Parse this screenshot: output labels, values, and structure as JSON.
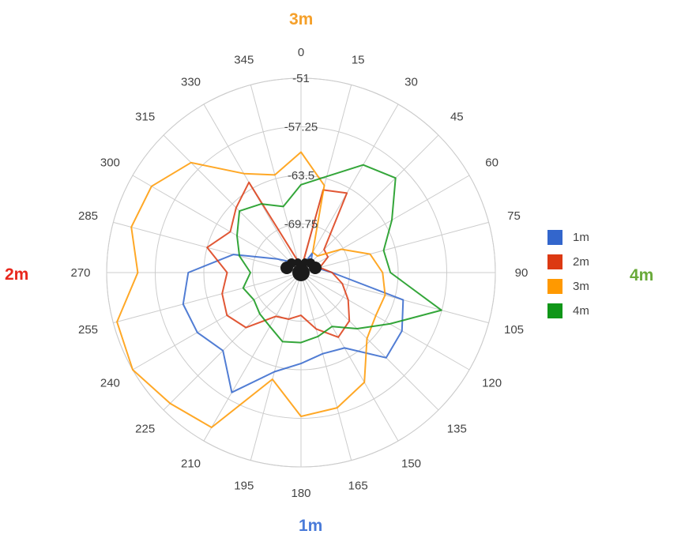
{
  "colors": {
    "1m": "#3366cc",
    "2m": "#dc3912",
    "3m": "#ff9900",
    "4m": "#109618",
    "label_1m": "#4a7bd9",
    "label_2m": "#e8281d",
    "label_3m": "#f5a02a",
    "label_4m": "#6aaa3a"
  },
  "labels": {
    "top": "3m",
    "left": "2m",
    "right": "4m",
    "bottom": "1m"
  },
  "legend": [
    {
      "name": "1m",
      "color": "#3366cc"
    },
    {
      "name": "2m",
      "color": "#dc3912"
    },
    {
      "name": "3m",
      "color": "#ff9900"
    },
    {
      "name": "4m",
      "color": "#109618"
    }
  ],
  "chart_data": {
    "type": "polar-line",
    "angles": [
      0,
      15,
      30,
      45,
      60,
      75,
      90,
      105,
      120,
      135,
      150,
      165,
      180,
      195,
      210,
      225,
      240,
      255,
      270,
      285,
      300,
      315,
      330,
      345
    ],
    "angle_tick_labels": [
      "0",
      "15",
      "30",
      "45",
      "60",
      "75",
      "90",
      "105",
      "120",
      "135",
      "150",
      "165",
      "180",
      "195",
      "210",
      "225",
      "240",
      "255",
      "270",
      "285",
      "300",
      "315",
      "330",
      "345"
    ],
    "radial_ticks": [
      "-51",
      "-57.25",
      "-63.5",
      "-69.75"
    ],
    "radial_range": [
      -76,
      -51
    ],
    "series": [
      {
        "name": "1m",
        "values": [
          -75.4,
          -75.0,
          -73.1,
          -74.2,
          -74.0,
          -73.8,
          -72.0,
          -62.4,
          -61.0,
          -60.5,
          -64.8,
          -65.2,
          -64.3,
          -62.8,
          -58.2,
          -61.8,
          -60.6,
          -60.3,
          -61.5,
          -67.0,
          -72.5,
          -74.0,
          -74.5,
          -75.5
        ]
      },
      {
        "name": "2m",
        "values": [
          -75.6,
          -65.0,
          -64.2,
          -71.8,
          -72.0,
          -73.5,
          -72.0,
          -70.5,
          -69.0,
          -67.2,
          -66.4,
          -68.5,
          -70.5,
          -69.8,
          -69.5,
          -66.0,
          -65.0,
          -65.5,
          -66.5,
          -63.5,
          -65.5,
          -64.2,
          -62.6,
          -74.5
        ]
      },
      {
        "name": "3m",
        "values": [
          -60.5,
          -64.4,
          -73.0,
          -73.0,
          -70.0,
          -66.8,
          -65.5,
          -64.8,
          -64.9,
          -64.0,
          -59.7,
          -58.0,
          -57.5,
          -61.8,
          -53.0,
          -52.2,
          -51.0,
          -51.5,
          -55.0,
          -53.4,
          -53.8,
          -56.0,
          -61.3,
          -63.0
        ]
      },
      {
        "name": "4m",
        "values": [
          -64.7,
          -63.2,
          -60.0,
          -58.8,
          -62.5,
          -65.0,
          -64.5,
          -57.3,
          -62.8,
          -65.8,
          -68.0,
          -67.5,
          -67.0,
          -66.8,
          -68.0,
          -68.5,
          -69.0,
          -68.3,
          -69.5,
          -67.8,
          -66.5,
          -64.8,
          -65.8,
          -67.2
        ]
      }
    ]
  }
}
